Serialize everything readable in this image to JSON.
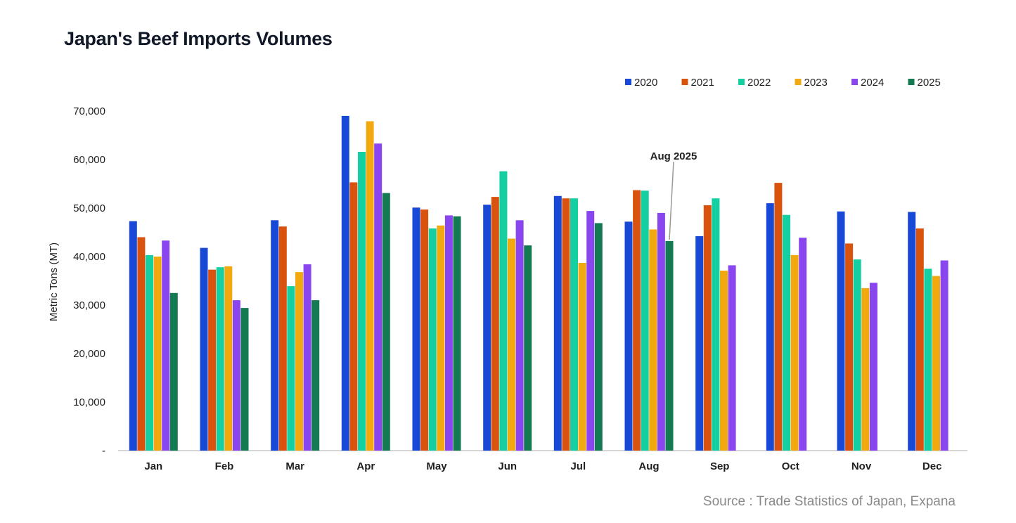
{
  "chart_title": "Japan's Beef Imports Volumes",
  "source": "Source : Trade Statistics of Japan, Expana",
  "chart_data": {
    "type": "bar",
    "title": "Japan's Beef Imports Volumes",
    "ylabel": "Metric Tons (MT)",
    "xlabel": "",
    "ylim": [
      0,
      70000
    ],
    "yticks": [
      0,
      10000,
      20000,
      30000,
      40000,
      50000,
      60000,
      70000
    ],
    "ytick_labels": [
      "-",
      "10,000",
      "20,000",
      "30,000",
      "40,000",
      "50,000",
      "60,000",
      "70,000"
    ],
    "categories": [
      "Jan",
      "Feb",
      "Mar",
      "Apr",
      "May",
      "Jun",
      "Jul",
      "Aug",
      "Sep",
      "Oct",
      "Nov",
      "Dec"
    ],
    "legend_position": "top-right",
    "grid": false,
    "series": [
      {
        "name": "2020",
        "color": "#1849d6",
        "values": [
          47300,
          41800,
          47500,
          69000,
          50100,
          50700,
          52500,
          47200,
          44200,
          51000,
          49300,
          49200
        ]
      },
      {
        "name": "2021",
        "color": "#d9530f",
        "values": [
          44000,
          37300,
          46200,
          55300,
          49700,
          52300,
          52000,
          53700,
          50600,
          55200,
          42700,
          45800
        ]
      },
      {
        "name": "2022",
        "color": "#14cfa1",
        "values": [
          40300,
          37800,
          33900,
          61600,
          45800,
          57600,
          52000,
          53600,
          52000,
          48600,
          39400,
          37500
        ]
      },
      {
        "name": "2023",
        "color": "#f2a80f",
        "values": [
          40000,
          38000,
          36800,
          67900,
          46400,
          43700,
          38700,
          45600,
          37100,
          40300,
          33500,
          36000
        ]
      },
      {
        "name": "2024",
        "color": "#8a46ee",
        "values": [
          43300,
          31000,
          38400,
          63300,
          48500,
          47500,
          49400,
          49000,
          38200,
          43900,
          34600,
          39200
        ]
      },
      {
        "name": "2025",
        "color": "#137a52",
        "values": [
          32500,
          29400,
          31000,
          53100,
          48300,
          42300,
          46900,
          43200,
          null,
          null,
          null,
          null
        ]
      }
    ],
    "annotations": [
      {
        "text": "Aug 2025",
        "category": "Aug",
        "series": "2025",
        "value": 43200
      }
    ]
  }
}
